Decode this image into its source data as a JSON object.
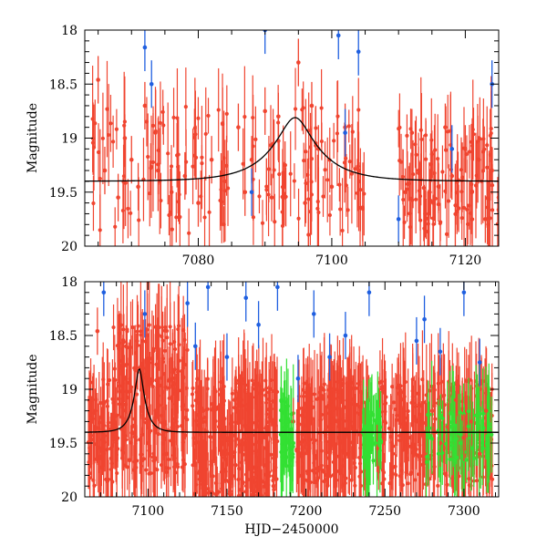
{
  "chart_data": [
    {
      "type": "scatter",
      "panel": "top",
      "xlim": [
        7063,
        7125
      ],
      "ylim": [
        20,
        18
      ],
      "ylim_note": "magnitude axis inverted (18 at top, 20 at bottom)",
      "xticks": [
        7080,
        7100,
        7120
      ],
      "yticks": [
        18,
        18.5,
        19,
        19.5,
        20
      ],
      "xtick_labels": [
        "7080",
        "7100",
        "7120"
      ],
      "ytick_labels": [
        "18",
        "18.5",
        "19",
        "19.5",
        "20"
      ],
      "xlabel": "",
      "ylabel": "Magnitude",
      "model_curve": {
        "name": "model",
        "color": "#000000",
        "baseline": 19.4,
        "peak_x": 7094.5,
        "peak_y": 18.81,
        "timescale_days": 2.2
      },
      "series": [
        {
          "name": "red-points",
          "color": "#f04530",
          "points": [
            [
              7065,
              18.46
            ],
            [
              7066,
              19.3
            ],
            [
              7068,
              19.55
            ],
            [
              7069,
              19.0
            ],
            [
              7070,
              19.2
            ],
            [
              7071,
              19.45
            ],
            [
              7072,
              18.7
            ],
            [
              7074,
              19.3
            ],
            [
              7076,
              19.5
            ],
            [
              7078,
              19.35
            ],
            [
              7080,
              19.6
            ],
            [
              7082,
              19.2
            ],
            [
              7084,
              19.4
            ],
            [
              7086,
              18.9
            ],
            [
              7087,
              19.5
            ],
            [
              7088,
              19.2
            ],
            [
              7090,
              18.75
            ],
            [
              7091,
              19.55
            ],
            [
              7092,
              18.8
            ],
            [
              7093,
              19.25
            ],
            [
              7095,
              18.3
            ],
            [
              7096,
              19.6
            ],
            [
              7097,
              18.7
            ],
            [
              7098,
              19.1
            ],
            [
              7100,
              19.45
            ],
            [
              7102,
              18.9
            ],
            [
              7104,
              19.3
            ],
            [
              7111,
              19.5
            ],
            [
              7112,
              18.95
            ],
            [
              7113,
              19.3
            ],
            [
              7114,
              19.7
            ],
            [
              7115,
              19.15
            ],
            [
              7116,
              19.45
            ],
            [
              7117,
              18.9
            ],
            [
              7118,
              19.35
            ],
            [
              7119,
              19.65
            ],
            [
              7120,
              19.1
            ],
            [
              7121,
              19.5
            ],
            [
              7122,
              19.2
            ],
            [
              7123,
              19.75
            ],
            [
              7124,
              19.3
            ],
            [
              7125,
              19.55
            ]
          ]
        },
        {
          "name": "blue-points",
          "color": "#1f5fe0",
          "points": [
            [
              7072,
              18.16
            ],
            [
              7073,
              18.5
            ],
            [
              7088,
              19.5
            ],
            [
              7090,
              18.0
            ],
            [
              7101,
              18.05
            ],
            [
              7102,
              18.95
            ],
            [
              7104,
              18.2
            ],
            [
              7110,
              19.75
            ],
            [
              7118,
              19.1
            ],
            [
              7124,
              18.5
            ]
          ]
        }
      ]
    },
    {
      "type": "scatter",
      "panel": "bottom",
      "xlim": [
        7060,
        7322
      ],
      "ylim": [
        20,
        18
      ],
      "ylim_note": "magnitude axis inverted (18 at top, 20 at bottom)",
      "xticks": [
        7100,
        7150,
        7200,
        7250,
        7300
      ],
      "yticks": [
        18,
        18.5,
        19,
        19.5,
        20
      ],
      "xtick_labels": [
        "7100",
        "7150",
        "7200",
        "7250",
        "7300"
      ],
      "ytick_labels": [
        "18",
        "18.5",
        "19",
        "19.5",
        "20"
      ],
      "xlabel": "HJD−2450000",
      "ylabel": "Magnitude",
      "model_curve": {
        "name": "model",
        "color": "#000000",
        "baseline": 19.4,
        "peak_x": 7094.5,
        "peak_y": 18.81,
        "timescale_days": 2.2
      },
      "series": [
        {
          "name": "red-points",
          "color": "#f04530",
          "points": [
            [
              7065,
              19.1
            ],
            [
              7068,
              18.46
            ],
            [
              7072,
              19.6
            ],
            [
              7078,
              19.3
            ],
            [
              7085,
              18.9
            ],
            [
              7090,
              19.4
            ],
            [
              7095,
              18.8
            ],
            [
              7100,
              19.5
            ],
            [
              7105,
              19.2
            ],
            [
              7112,
              19.6
            ],
            [
              7118,
              19.3
            ],
            [
              7130,
              19.5
            ],
            [
              7135,
              19.2
            ],
            [
              7140,
              19.7
            ],
            [
              7145,
              19.35
            ],
            [
              7150,
              19.6
            ],
            [
              7155,
              19.1
            ],
            [
              7160,
              19.5
            ],
            [
              7165,
              19.25
            ],
            [
              7170,
              19.7
            ],
            [
              7175,
              19.35
            ],
            [
              7180,
              19.5
            ],
            [
              7192,
              19.3
            ],
            [
              7196,
              19.6
            ],
            [
              7200,
              19.2
            ],
            [
              7205,
              19.5
            ],
            [
              7210,
              19.0
            ],
            [
              7215,
              19.45
            ],
            [
              7220,
              19.3
            ],
            [
              7225,
              19.6
            ],
            [
              7230,
              19.1
            ],
            [
              7235,
              19.4
            ],
            [
              7245,
              19.55
            ],
            [
              7250,
              19.3
            ],
            [
              7255,
              19.6
            ],
            [
              7260,
              19.1
            ],
            [
              7265,
              19.45
            ],
            [
              7270,
              19.3
            ],
            [
              7275,
              19.6
            ],
            [
              7280,
              19.2
            ],
            [
              7285,
              19.5
            ],
            [
              7290,
              19.35
            ],
            [
              7295,
              19.1
            ],
            [
              7300,
              19.45
            ],
            [
              7305,
              19.3
            ],
            [
              7310,
              19.6
            ],
            [
              7314,
              19.2
            ]
          ]
        },
        {
          "name": "blue-points",
          "color": "#1f5fe0",
          "points": [
            [
              7072,
              18.1
            ],
            [
              7098,
              18.3
            ],
            [
              7125,
              18.2
            ],
            [
              7130,
              18.6
            ],
            [
              7138,
              18.05
            ],
            [
              7150,
              18.7
            ],
            [
              7162,
              18.15
            ],
            [
              7170,
              18.4
            ],
            [
              7182,
              18.05
            ],
            [
              7195,
              18.9
            ],
            [
              7205,
              18.3
            ],
            [
              7215,
              18.7
            ],
            [
              7225,
              18.5
            ],
            [
              7240,
              18.1
            ],
            [
              7270,
              18.55
            ],
            [
              7275,
              18.35
            ],
            [
              7285,
              18.65
            ],
            [
              7300,
              18.1
            ],
            [
              7310,
              18.75
            ]
          ]
        },
        {
          "name": "green-points",
          "color": "#33e033",
          "points": [
            [
              7186,
              19.45
            ],
            [
              7188,
              19.3
            ],
            [
              7190,
              19.6
            ],
            [
              7192,
              19.5
            ],
            [
              7236,
              19.4
            ],
            [
              7238,
              19.6
            ],
            [
              7241,
              19.35
            ],
            [
              7244,
              19.5
            ],
            [
              7246,
              19.3
            ],
            [
              7278,
              19.45
            ],
            [
              7284,
              19.6
            ],
            [
              7292,
              19.35
            ],
            [
              7298,
              19.5
            ],
            [
              7306,
              19.4
            ],
            [
              7312,
              19.55
            ],
            [
              7316,
              19.35
            ]
          ]
        }
      ]
    }
  ]
}
